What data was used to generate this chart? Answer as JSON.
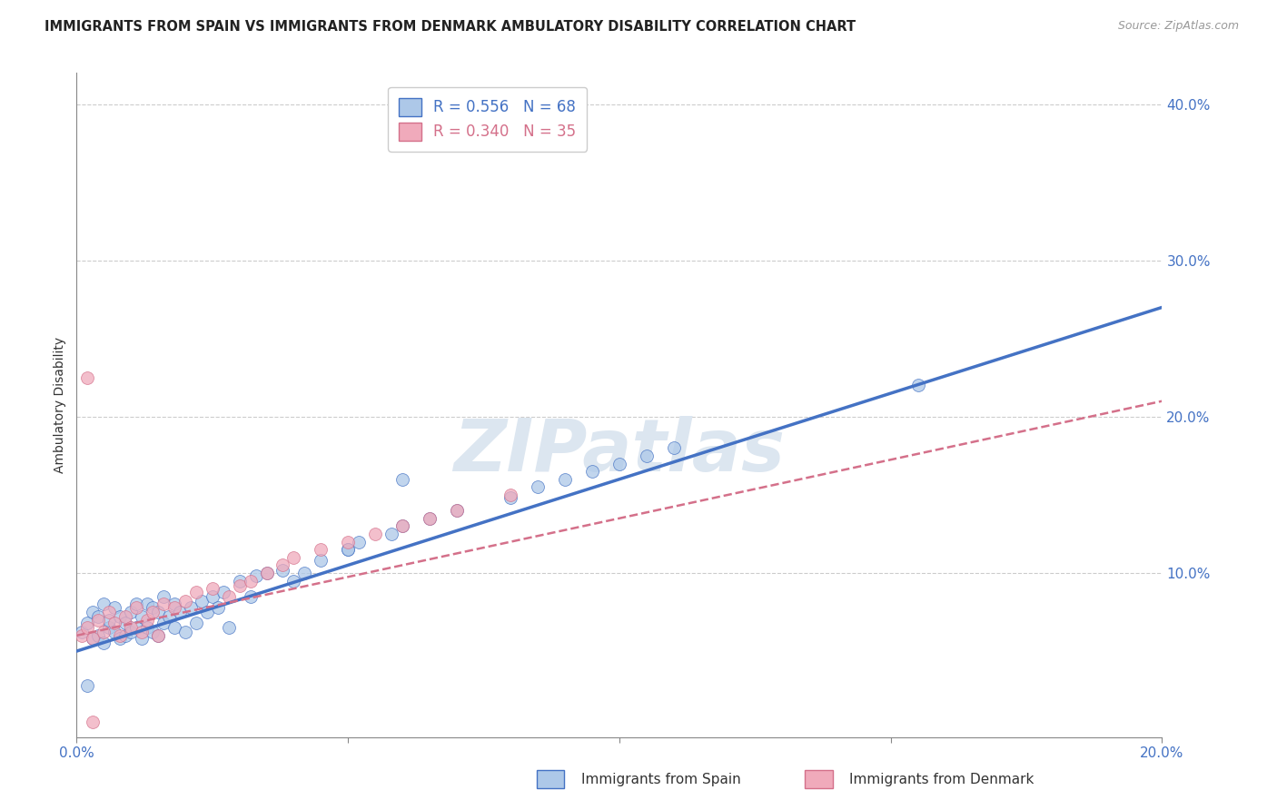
{
  "title": "IMMIGRANTS FROM SPAIN VS IMMIGRANTS FROM DENMARK AMBULATORY DISABILITY CORRELATION CHART",
  "source": "Source: ZipAtlas.com",
  "ylabel": "Ambulatory Disability",
  "xlim": [
    0.0,
    0.2
  ],
  "ylim": [
    -0.005,
    0.42
  ],
  "xticks": [
    0.0,
    0.05,
    0.1,
    0.15,
    0.2
  ],
  "yticks": [
    0.1,
    0.2,
    0.3,
    0.4
  ],
  "spain_R": 0.556,
  "spain_N": 68,
  "denmark_R": 0.34,
  "denmark_N": 35,
  "spain_color": "#adc8e8",
  "denmark_color": "#f0aabb",
  "spain_line_color": "#4472c4",
  "denmark_line_color": "#d4708a",
  "legend_label_spain": "Immigrants from Spain",
  "legend_label_denmark": "Immigrants from Denmark",
  "spain_x": [
    0.001,
    0.002,
    0.003,
    0.003,
    0.004,
    0.004,
    0.005,
    0.005,
    0.006,
    0.006,
    0.007,
    0.007,
    0.008,
    0.008,
    0.009,
    0.009,
    0.01,
    0.01,
    0.011,
    0.011,
    0.012,
    0.012,
    0.013,
    0.013,
    0.014,
    0.014,
    0.015,
    0.015,
    0.016,
    0.016,
    0.017,
    0.018,
    0.018,
    0.019,
    0.02,
    0.021,
    0.022,
    0.023,
    0.024,
    0.025,
    0.026,
    0.027,
    0.028,
    0.03,
    0.032,
    0.033,
    0.035,
    0.038,
    0.04,
    0.042,
    0.045,
    0.05,
    0.052,
    0.058,
    0.06,
    0.065,
    0.07,
    0.08,
    0.085,
    0.09,
    0.095,
    0.1,
    0.105,
    0.11,
    0.05,
    0.06,
    0.155,
    0.002
  ],
  "spain_y": [
    0.062,
    0.068,
    0.058,
    0.075,
    0.06,
    0.072,
    0.055,
    0.08,
    0.065,
    0.07,
    0.062,
    0.078,
    0.058,
    0.072,
    0.06,
    0.068,
    0.062,
    0.075,
    0.065,
    0.08,
    0.058,
    0.072,
    0.065,
    0.08,
    0.062,
    0.078,
    0.06,
    0.075,
    0.068,
    0.085,
    0.072,
    0.065,
    0.08,
    0.075,
    0.062,
    0.078,
    0.068,
    0.082,
    0.075,
    0.085,
    0.078,
    0.088,
    0.065,
    0.095,
    0.085,
    0.098,
    0.1,
    0.102,
    0.095,
    0.1,
    0.108,
    0.115,
    0.12,
    0.125,
    0.13,
    0.135,
    0.14,
    0.148,
    0.155,
    0.16,
    0.165,
    0.17,
    0.175,
    0.18,
    0.115,
    0.16,
    0.22,
    0.028
  ],
  "denmark_x": [
    0.001,
    0.002,
    0.003,
    0.004,
    0.005,
    0.006,
    0.007,
    0.008,
    0.009,
    0.01,
    0.011,
    0.012,
    0.013,
    0.014,
    0.015,
    0.016,
    0.018,
    0.02,
    0.022,
    0.025,
    0.028,
    0.03,
    0.032,
    0.035,
    0.038,
    0.04,
    0.045,
    0.05,
    0.055,
    0.06,
    0.065,
    0.07,
    0.08,
    0.002,
    0.003
  ],
  "denmark_y": [
    0.06,
    0.065,
    0.058,
    0.07,
    0.062,
    0.075,
    0.068,
    0.06,
    0.072,
    0.065,
    0.078,
    0.062,
    0.07,
    0.075,
    0.06,
    0.08,
    0.078,
    0.082,
    0.088,
    0.09,
    0.085,
    0.092,
    0.095,
    0.1,
    0.105,
    0.11,
    0.115,
    0.12,
    0.125,
    0.13,
    0.135,
    0.14,
    0.15,
    0.225,
    0.005
  ],
  "background_color": "#ffffff",
  "grid_color": "#cccccc",
  "watermark_text": "ZIPatlas",
  "watermark_color": "#dce6f0",
  "spain_line_x0": 0.0,
  "spain_line_y0": 0.05,
  "spain_line_x1": 0.2,
  "spain_line_y1": 0.27,
  "denmark_line_x0": 0.0,
  "denmark_line_y0": 0.06,
  "denmark_line_x1": 0.2,
  "denmark_line_y1": 0.21
}
